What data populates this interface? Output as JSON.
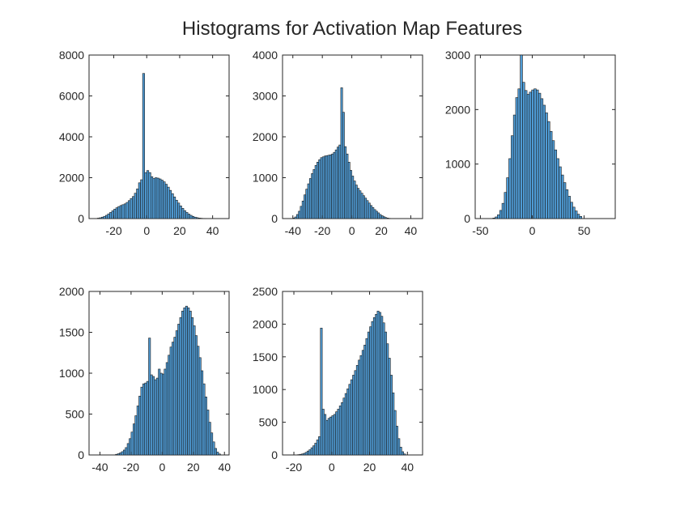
{
  "figure": {
    "title": "Histograms for Activation Map Features",
    "bar_color": "#4f9cd6",
    "edge_color": "#1a1a1a"
  },
  "chart_data": [
    {
      "type": "bar",
      "subplot": "1",
      "xlim": [
        -35,
        50
      ],
      "ylim": [
        0,
        8000
      ],
      "xticks": [
        -20,
        0,
        20,
        40
      ],
      "yticks": [
        0,
        2000,
        4000,
        6000,
        8000
      ],
      "bin_width": 1.25,
      "bin_start": -30,
      "counts": [
        20,
        40,
        70,
        110,
        160,
        230,
        300,
        380,
        460,
        530,
        590,
        640,
        680,
        720,
        790,
        880,
        980,
        1080,
        1240,
        1450,
        1750,
        1900,
        7100,
        2250,
        2350,
        2250,
        2050,
        1960,
        2000,
        1980,
        1940,
        1880,
        1800,
        1680,
        1540,
        1380,
        1220,
        1060,
        900,
        760,
        620,
        500,
        390,
        300,
        220,
        160,
        110,
        70,
        45,
        25,
        15,
        8,
        4
      ]
    },
    {
      "type": "bar",
      "subplot": "2",
      "xlim": [
        -47,
        48
      ],
      "ylim": [
        0,
        4000
      ],
      "xticks": [
        -40,
        -20,
        0,
        20,
        40
      ],
      "yticks": [
        0,
        1000,
        2000,
        3000,
        4000
      ],
      "bin_width": 1.25,
      "bin_start": -40,
      "counts": [
        15,
        40,
        100,
        180,
        300,
        430,
        580,
        720,
        850,
        980,
        1100,
        1200,
        1300,
        1380,
        1440,
        1490,
        1510,
        1530,
        1540,
        1550,
        1560,
        1580,
        1620,
        1680,
        1750,
        1800,
        3200,
        2600,
        1760,
        1580,
        1380,
        1180,
        1040,
        920,
        820,
        740,
        680,
        620,
        560,
        500,
        440,
        380,
        320,
        270,
        220,
        180,
        140,
        100,
        70,
        45,
        25,
        12,
        5
      ]
    },
    {
      "type": "bar",
      "subplot": "3",
      "xlim": [
        -55,
        80
      ],
      "ylim": [
        0,
        3000
      ],
      "xticks": [
        -50,
        0,
        50
      ],
      "yticks": [
        0,
        1000,
        2000,
        3000
      ],
      "bin_width": 2.2,
      "bin_start": -38,
      "counts": [
        10,
        30,
        70,
        150,
        280,
        480,
        750,
        1100,
        1520,
        1900,
        2220,
        2380,
        3000,
        2500,
        2350,
        2280,
        2320,
        2360,
        2380,
        2360,
        2300,
        2200,
        2080,
        1940,
        1780,
        1600,
        1430,
        1260,
        1100,
        950,
        800,
        660,
        530,
        410,
        300,
        210,
        140,
        80,
        40
      ]
    },
    {
      "type": "bar",
      "subplot": "4",
      "xlim": [
        -47,
        43
      ],
      "ylim": [
        0,
        2000
      ],
      "xticks": [
        -40,
        -20,
        0,
        20,
        40
      ],
      "yticks": [
        0,
        500,
        1000,
        1500,
        2000
      ],
      "bin_width": 1.25,
      "bin_start": -30,
      "counts": [
        8,
        15,
        25,
        40,
        60,
        90,
        140,
        200,
        280,
        380,
        480,
        600,
        720,
        830,
        870,
        880,
        900,
        1430,
        980,
        960,
        920,
        940,
        1050,
        1000,
        990,
        1050,
        1130,
        1220,
        1320,
        1380,
        1440,
        1520,
        1600,
        1680,
        1760,
        1800,
        1820,
        1800,
        1760,
        1680,
        1580,
        1460,
        1330,
        1190,
        1030,
        870,
        710,
        550,
        400,
        270,
        160,
        80,
        35,
        12
      ]
    },
    {
      "type": "bar",
      "subplot": "5",
      "xlim": [
        -26,
        48
      ],
      "ylim": [
        0,
        2500
      ],
      "xticks": [
        -20,
        0,
        20,
        40
      ],
      "yticks": [
        0,
        500,
        1000,
        1500,
        2000,
        2500
      ],
      "bin_width": 1.0,
      "bin_start": -18,
      "counts": [
        5,
        10,
        15,
        25,
        40,
        60,
        80,
        110,
        140,
        180,
        230,
        280,
        1940,
        700,
        620,
        530,
        560,
        580,
        600,
        620,
        660,
        700,
        750,
        800,
        870,
        940,
        1010,
        1080,
        1150,
        1220,
        1290,
        1370,
        1450,
        1520,
        1600,
        1680,
        1780,
        1880,
        1960,
        2040,
        2100,
        2150,
        2200,
        2180,
        2120,
        2020,
        1880,
        1700,
        1480,
        1220,
        950,
        680,
        440,
        250,
        120,
        50,
        15
      ]
    }
  ]
}
